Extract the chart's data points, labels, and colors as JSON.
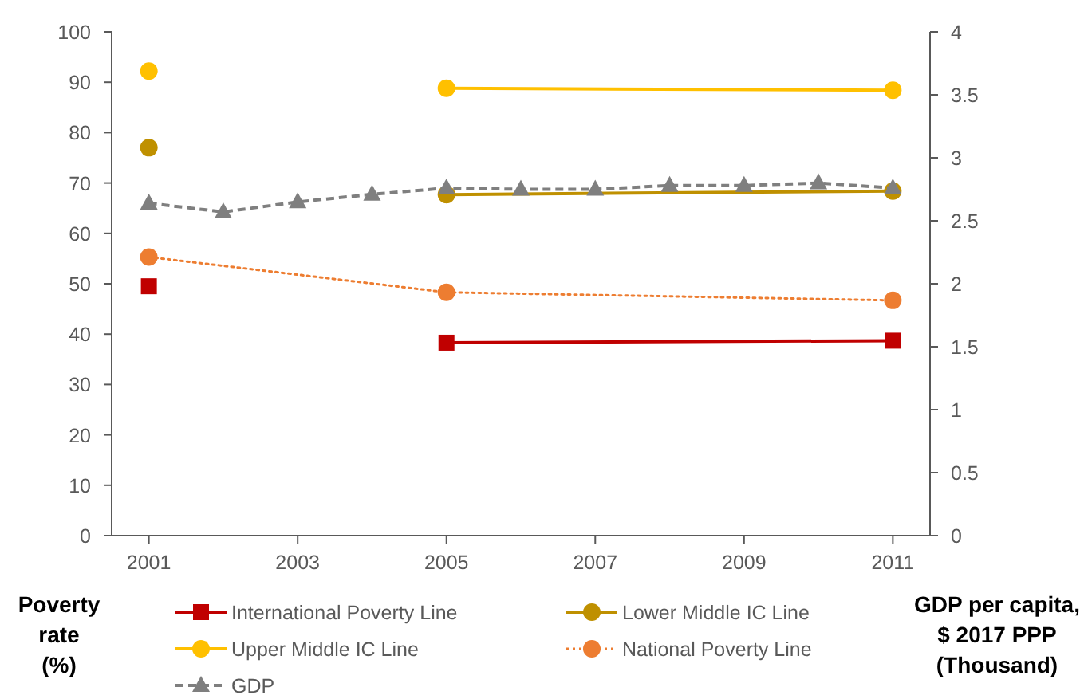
{
  "chart_data": {
    "type": "line",
    "xlim": [
      2000.5,
      2011.5
    ],
    "xticks": [
      2001,
      2003,
      2005,
      2007,
      2009,
      2011
    ],
    "ylabel": "Poverty rate (%)",
    "y2label": "GDP per capita, $ 2017 PPP (Thousand)",
    "ylim": [
      0,
      100
    ],
    "yticks": [
      0,
      10,
      20,
      30,
      40,
      50,
      60,
      70,
      80,
      90,
      100
    ],
    "y2lim": [
      0,
      4
    ],
    "y2ticks": [
      0,
      0.5,
      1,
      1.5,
      2,
      2.5,
      3,
      3.5,
      4
    ],
    "grid": false,
    "legend": "bottom",
    "series": [
      {
        "name": "International Poverty Line",
        "color": "#c00000",
        "marker": "square",
        "line_style": "solid",
        "x": [
          2005,
          2011
        ],
        "values": [
          38.3,
          38.7
        ]
      },
      {
        "name": "Lower Middle IC Line",
        "color": "#bf9000",
        "marker": "circle",
        "line_style": "solid",
        "x": [
          2005,
          2011
        ],
        "values": [
          67.7,
          68.4
        ]
      },
      {
        "name": "Upper Middle IC Line",
        "color": "#ffc000",
        "marker": "circle",
        "line_style": "solid",
        "x": [
          2005,
          2011
        ],
        "values": [
          88.8,
          88.4
        ]
      },
      {
        "name": "National Poverty Line",
        "color": "#ed7d31",
        "marker": "circle",
        "line_style": "dotted",
        "x": [
          2001,
          2005,
          2011
        ],
        "values": [
          55.3,
          48.3,
          46.7
        ]
      },
      {
        "name": "GDP",
        "color": "#7f7f7f",
        "marker": "triangle",
        "line_style": "dashed",
        "axis": "y2",
        "x": [
          2001,
          2002,
          2003,
          2004,
          2005,
          2006,
          2007,
          2008,
          2009,
          2010,
          2011
        ],
        "values": [
          2.64,
          2.57,
          2.65,
          2.71,
          2.76,
          2.75,
          2.75,
          2.78,
          2.78,
          2.8,
          2.76
        ]
      },
      {
        "type": "scatter",
        "color": "#c00000",
        "marker": "square",
        "x": [
          2001
        ],
        "values": [
          49.5
        ]
      },
      {
        "type": "scatter",
        "color": "#bf9000",
        "marker": "circle",
        "x": [
          2001
        ],
        "values": [
          77.0
        ]
      },
      {
        "type": "scatter",
        "color": "#ffc000",
        "marker": "circle",
        "x": [
          2001
        ],
        "values": [
          92.2
        ]
      }
    ]
  }
}
